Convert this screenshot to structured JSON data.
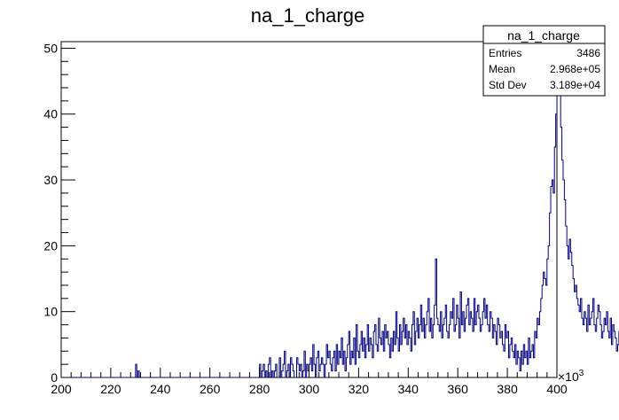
{
  "chart_data": {
    "type": "bar",
    "title": "na_1_charge",
    "xlabel": "",
    "ylabel": "",
    "x_multiplier_label": "×10",
    "x_multiplier_exp": "3",
    "xlim": [
      200,
      400
    ],
    "ylim": [
      0,
      51
    ],
    "x_ticks": [
      200,
      220,
      240,
      260,
      280,
      300,
      320,
      340,
      360,
      380,
      400
    ],
    "y_ticks": [
      0,
      10,
      20,
      30,
      40,
      50
    ],
    "bin_width": 0.5,
    "bin_start": 200,
    "line_color": "#00007f",
    "values": [
      0,
      0,
      0,
      0,
      0,
      0,
      0,
      0,
      0,
      0,
      0,
      0,
      0,
      0,
      0,
      0,
      0,
      0,
      0,
      0,
      0,
      0,
      0,
      0,
      0,
      0,
      0,
      0,
      0,
      0,
      0,
      0,
      0,
      0,
      0,
      0,
      0,
      0,
      0,
      0,
      0,
      0,
      0,
      0,
      0,
      0,
      0,
      0,
      0,
      0,
      0,
      0,
      0,
      0,
      0,
      0,
      0,
      0,
      0,
      0,
      2,
      0,
      1,
      0,
      0,
      0,
      0,
      0,
      0,
      0,
      0,
      0,
      0,
      0,
      0,
      0,
      0,
      0,
      0,
      0,
      0,
      0,
      0,
      0,
      0,
      0,
      0,
      0,
      0,
      0,
      0,
      0,
      0,
      0,
      0,
      0,
      0,
      0,
      0,
      0,
      0,
      0,
      0,
      0,
      0,
      0,
      0,
      0,
      0,
      0,
      0,
      0,
      0,
      0,
      0,
      0,
      0,
      0,
      0,
      0,
      0,
      0,
      0,
      0,
      0,
      0,
      0,
      0,
      0,
      0,
      0,
      0,
      0,
      0,
      0,
      0,
      0,
      0,
      0,
      0,
      0,
      0,
      0,
      0,
      0,
      0,
      0,
      0,
      0,
      0,
      0,
      0,
      0,
      0,
      0,
      0,
      0,
      0,
      0,
      0,
      2,
      0,
      1,
      2,
      0,
      1,
      0,
      2,
      3,
      0,
      1,
      0,
      1,
      2,
      0,
      0,
      3,
      0,
      1,
      2,
      4,
      0,
      1,
      2,
      0,
      3,
      2,
      1,
      0,
      0,
      3,
      2,
      1,
      2,
      0,
      1,
      4,
      0,
      2,
      1,
      2,
      3,
      1,
      5,
      2,
      0,
      3,
      4,
      1,
      2,
      3,
      2,
      0,
      2,
      5,
      3,
      4,
      2,
      1,
      3,
      4,
      1,
      5,
      2,
      4,
      3,
      6,
      2,
      4,
      1,
      3,
      5,
      7,
      2,
      4,
      3,
      6,
      2,
      8,
      4,
      3,
      5,
      7,
      4,
      6,
      3,
      5,
      8,
      4,
      6,
      5,
      3,
      7,
      8,
      5,
      4,
      9,
      6,
      5,
      7,
      4,
      8,
      6,
      7,
      5,
      3,
      6,
      4,
      7,
      5,
      10,
      6,
      4,
      8,
      5,
      7,
      9,
      6,
      8,
      5,
      7,
      6,
      4,
      8,
      10,
      5,
      7,
      9,
      6,
      8,
      11,
      7,
      9,
      6,
      8,
      10,
      12,
      7,
      9,
      6,
      8,
      11,
      18,
      9,
      8,
      7,
      10,
      6,
      8,
      9,
      11,
      7,
      6,
      8,
      10,
      9,
      12,
      7,
      8,
      11,
      9,
      6,
      13,
      8,
      10,
      7,
      9,
      11,
      12,
      8,
      10,
      9,
      7,
      12,
      8,
      10,
      11,
      9,
      7,
      8,
      10,
      12,
      9,
      11,
      8,
      7,
      10,
      9,
      6,
      8,
      7,
      5,
      9,
      8,
      6,
      7,
      5,
      4,
      8,
      6,
      7,
      3,
      5,
      6,
      4,
      3,
      5,
      2,
      4,
      3,
      1,
      4,
      2,
      5,
      3,
      4,
      2,
      6,
      3,
      4,
      5,
      3,
      7,
      6,
      9,
      8,
      10,
      12,
      14,
      16,
      15,
      14,
      18,
      20,
      25,
      29,
      30,
      28,
      35,
      40,
      43,
      48,
      44,
      38,
      33,
      30,
      27,
      23,
      20,
      18,
      21,
      19,
      17,
      15,
      13,
      14,
      12,
      11,
      10,
      12,
      9,
      8,
      10,
      9,
      7,
      11,
      8,
      9,
      10,
      12,
      8,
      7,
      9,
      11,
      10,
      8,
      6,
      7,
      9,
      8,
      10,
      7,
      6,
      9,
      5,
      8,
      7,
      6,
      4,
      5,
      7,
      6,
      3,
      5,
      4,
      6,
      3,
      4,
      5,
      2,
      4,
      3,
      5,
      4,
      3,
      2,
      4,
      3,
      5,
      4,
      2,
      3,
      4,
      5,
      6,
      4,
      5,
      7,
      6,
      8,
      7,
      9,
      10,
      8,
      11,
      9,
      10,
      12,
      11,
      13,
      10,
      12,
      14,
      11,
      13,
      12,
      15,
      12,
      13,
      11,
      14,
      12,
      10,
      13,
      9,
      11,
      8,
      10,
      7,
      9,
      6,
      8,
      5,
      7,
      4,
      6,
      3,
      5,
      2,
      4,
      3,
      2,
      4,
      1,
      3,
      2,
      1,
      3,
      2,
      4,
      1,
      2,
      3,
      1,
      2,
      0,
      1,
      2,
      1,
      0,
      2,
      1,
      3,
      0,
      1,
      2,
      0,
      1,
      0,
      2,
      1,
      0,
      1,
      0,
      1,
      0,
      2,
      0,
      1,
      0,
      0,
      1,
      0,
      0,
      2,
      0,
      1,
      0,
      0,
      1,
      0,
      0,
      0,
      1,
      0,
      0,
      0,
      2,
      0,
      0,
      1,
      0,
      0,
      0,
      0,
      1,
      0,
      0,
      0,
      0,
      2,
      0,
      0,
      0,
      1,
      0,
      0,
      0,
      0,
      0,
      1,
      0,
      0,
      0,
      0,
      0,
      0,
      0,
      1,
      0,
      0,
      2,
      0,
      0,
      0,
      0,
      1,
      0,
      0,
      0,
      0,
      0,
      0,
      0,
      0,
      0,
      0,
      0,
      0,
      1,
      0,
      0,
      0,
      0,
      0,
      0,
      0,
      0,
      0,
      0,
      0,
      2,
      0,
      0,
      0,
      0,
      0,
      0,
      0,
      1,
      0,
      0,
      0,
      0,
      0,
      0,
      0,
      0,
      1,
      0,
      0,
      0,
      0,
      0,
      0,
      0,
      0,
      0,
      0,
      0,
      0,
      0,
      0,
      0,
      0,
      0,
      0,
      1,
      0,
      0,
      0,
      0,
      0,
      0,
      0,
      0,
      0,
      0,
      0,
      0,
      0,
      0,
      0,
      0,
      0,
      0,
      0,
      0,
      0,
      0,
      0
    ],
    "grid": false,
    "legend_placement": "none"
  },
  "stats_box": {
    "title": "na_1_charge",
    "rows": [
      {
        "label": "Entries",
        "value": "3486"
      },
      {
        "label": "Mean",
        "value": "2.968e+05"
      },
      {
        "label": "Std Dev",
        "value": "3.189e+04"
      }
    ]
  }
}
